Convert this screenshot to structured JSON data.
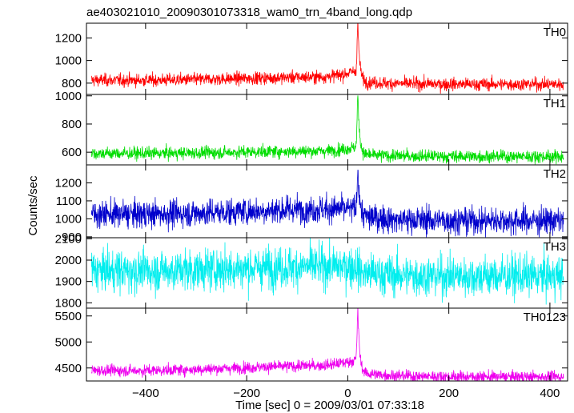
{
  "chart_data": {
    "type": "line",
    "title": "ae403021010_20090301073318_wam0_trn_4band_long.qdp",
    "xlabel": "Time [sec] 0 = 2009/03/01 07:33:18",
    "ylabel": "Counts/sec",
    "xlim": [
      -517,
      435
    ],
    "x_ticks": [
      -400,
      -200,
      0,
      200,
      400
    ],
    "x_tick_labels": [
      "−400",
      "−200",
      "0",
      "200",
      "400"
    ],
    "grid": false,
    "panels": [
      {
        "name": "TH0",
        "color": "#ff0000",
        "ylim": [
          700,
          1330
        ],
        "yticks": [
          800,
          1000,
          1200
        ],
        "ytick_labels": [
          "800",
          "1000",
          "1200"
        ],
        "profile": {
          "pre_level": 840,
          "post_level": 790,
          "sigma": 28,
          "peak_time": 20,
          "peak_value": 1330,
          "pre_burst_rise": 60
        }
      },
      {
        "name": "TH1",
        "color": "#00dd00",
        "ylim": [
          510,
          1010
        ],
        "yticks": [
          600,
          800,
          1000
        ],
        "ytick_labels": [
          "600",
          "800",
          "1000"
        ],
        "profile": {
          "pre_level": 600,
          "post_level": 570,
          "sigma": 22,
          "peak_time": 20,
          "peak_value": 1000,
          "pre_burst_rise": 30
        }
      },
      {
        "name": "TH2",
        "color": "#0000cc",
        "ylim": [
          895,
          1300
        ],
        "yticks": [
          900,
          1000,
          1100,
          1200
        ],
        "ytick_labels": [
          "900",
          "1000",
          "1100",
          "1200"
        ],
        "profile": {
          "pre_level": 1040,
          "post_level": 990,
          "sigma": 38,
          "peak_time": 20,
          "peak_value": 1290,
          "pre_burst_rise": 0
        }
      },
      {
        "name": "TH3",
        "color": "#00eeee",
        "ylim": [
          1775,
          2105
        ],
        "yticks": [
          1800,
          1900,
          2000,
          2100
        ],
        "ytick_labels": [
          "1800",
          "1900",
          "2000",
          "2100"
        ],
        "profile": {
          "pre_level": 1960,
          "post_level": 1925,
          "sigma": 48,
          "peak_time": 20,
          "peak_value": 1960,
          "pre_burst_rise": 0
        }
      },
      {
        "name": "TH0123",
        "color": "#ee00ee",
        "ylim": [
          4250,
          5650
        ],
        "yticks": [
          4500,
          5000,
          5500
        ],
        "ytick_labels": [
          "4500",
          "5000",
          "5500"
        ],
        "profile": {
          "pre_level": 4500,
          "post_level": 4330,
          "sigma": 55,
          "peak_time": 20,
          "peak_value": 5620,
          "pre_burst_rise": 120
        }
      }
    ]
  }
}
